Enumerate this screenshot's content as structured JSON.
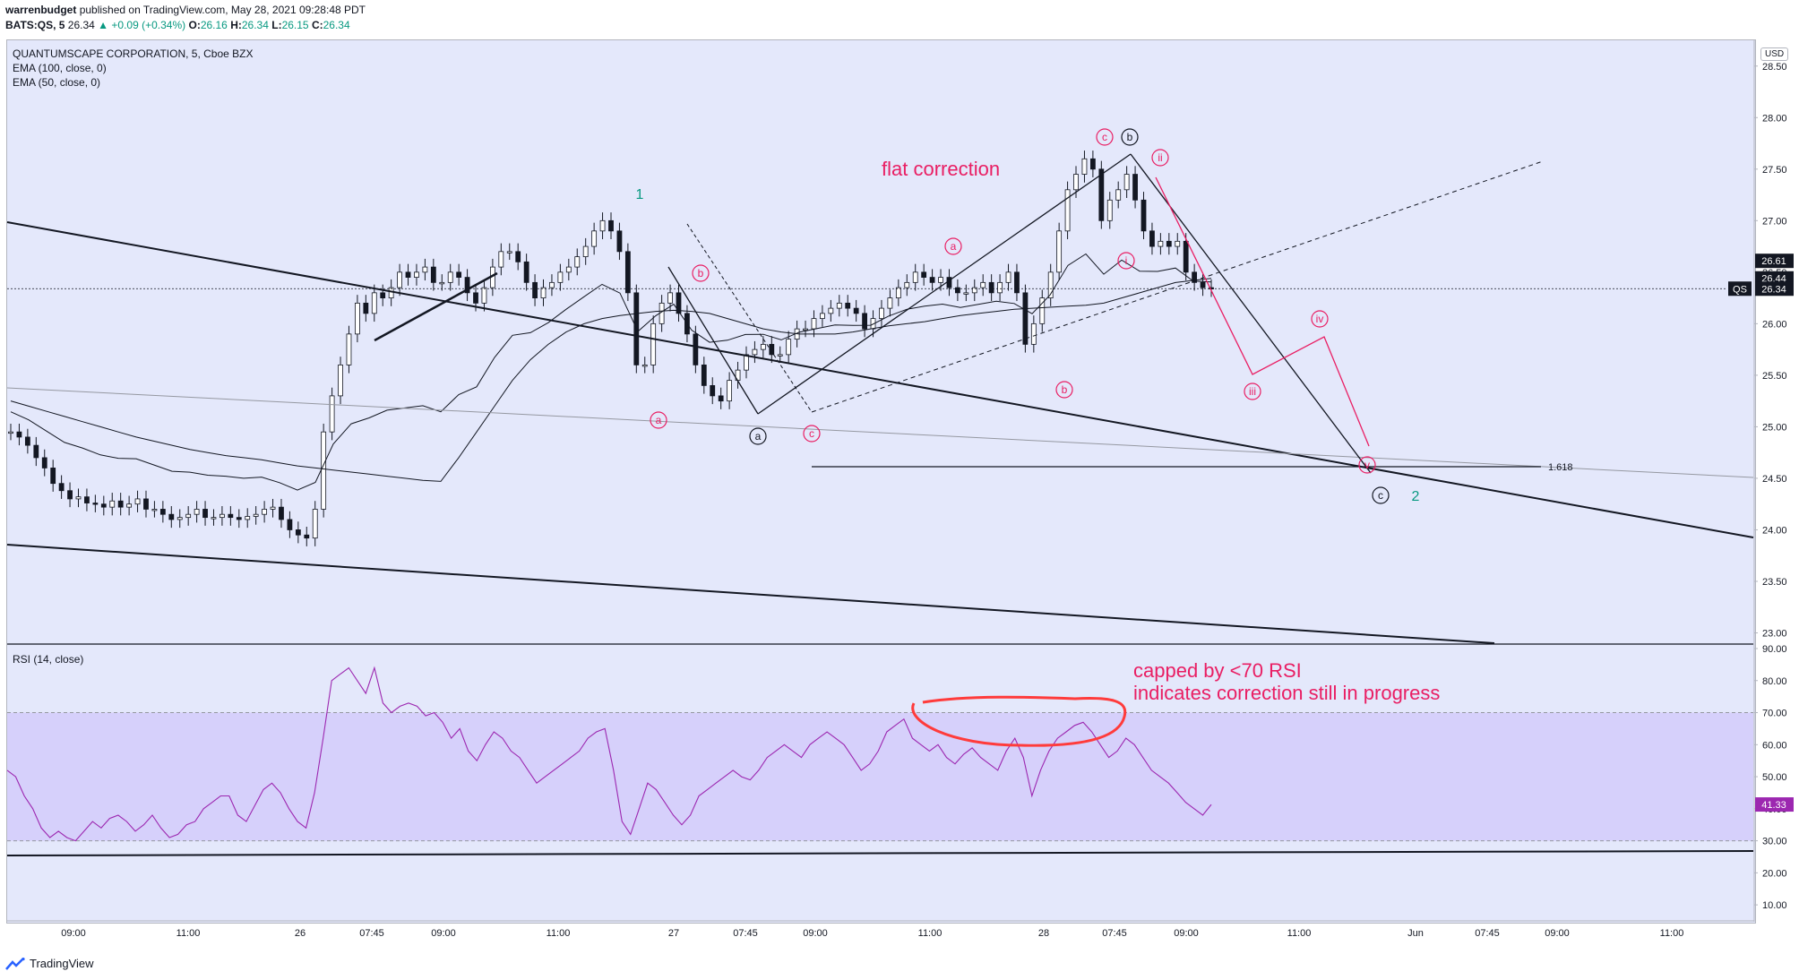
{
  "header": {
    "publisher": "warrenbudget",
    "published_text": "published on TradingView.com, May 28, 2021 09:28:48 PDT",
    "symbol_line_label": "BATS:QS, 5",
    "last": "26.34",
    "change": "+0.09 (+0.34%)",
    "o_label": "O:",
    "o": "26.16",
    "h_label": "H:",
    "h": "26.34",
    "l_label": "L:",
    "l": "26.15",
    "c_label": "C:",
    "c": "26.34"
  },
  "legend": {
    "title": "QUANTUMSCAPE CORPORATION, 5, Cboe BZX",
    "ema100": "EMA (100, close, 0)",
    "ema50": "EMA (50, close, 0)",
    "rsi": "RSI (14, close)"
  },
  "currency": "USD",
  "footer": {
    "brand": "TradingView"
  },
  "colors": {
    "bg": "#e4e8fb",
    "rsi_band": "#d6d0fb",
    "rsi_line": "#9c27b0",
    "wave_pink": "#e91e63",
    "wave_green": "#089981",
    "annot_red": "#ff3b3b"
  },
  "chart_data": [
    {
      "type": "candlestick",
      "title": "QUANTUMSCAPE CORPORATION, 5, Cboe BZX",
      "ylim": [
        22.9,
        28.75
      ],
      "price_ticks": [
        "28.50",
        "28.00",
        "27.50",
        "27.00",
        "26.50",
        "26.00",
        "25.50",
        "25.00",
        "24.50",
        "24.00",
        "23.50",
        "23.00"
      ],
      "time_ticks": [
        "09:00",
        "11:00",
        "26",
        "07:45",
        "09:00",
        "11:00",
        "27",
        "07:45",
        "09:00",
        "11:00",
        "28",
        "07:45",
        "09:00",
        "11:00",
        "Jun",
        "07:45",
        "09:00",
        "11:00"
      ],
      "price_labels": {
        "high": "26.61",
        "mid": "26.44",
        "last": "26.34",
        "symbol": "QS"
      },
      "close_path": [
        24.95,
        24.9,
        24.82,
        24.7,
        24.6,
        24.45,
        24.38,
        24.3,
        24.32,
        24.26,
        24.25,
        24.22,
        24.28,
        24.22,
        24.25,
        24.3,
        24.2,
        24.2,
        24.15,
        24.1,
        24.12,
        24.15,
        24.2,
        24.12,
        24.12,
        24.15,
        24.12,
        24.1,
        24.13,
        24.15,
        24.2,
        24.22,
        24.1,
        24.0,
        23.95,
        23.92,
        24.2,
        24.95,
        25.3,
        25.6,
        25.9,
        26.2,
        26.1,
        26.3,
        26.25,
        26.35,
        26.5,
        26.45,
        26.5,
        26.55,
        26.4,
        26.4,
        26.5,
        26.45,
        26.3,
        26.2,
        26.35,
        26.55,
        26.7,
        26.7,
        26.6,
        26.4,
        26.25,
        26.35,
        26.4,
        26.5,
        26.55,
        26.65,
        26.75,
        26.9,
        27.0,
        26.9,
        26.7,
        26.3,
        25.6,
        25.6,
        26.0,
        26.2,
        26.3,
        26.1,
        25.9,
        25.6,
        25.4,
        25.3,
        25.25,
        25.45,
        25.55,
        25.7,
        25.75,
        25.8,
        25.7,
        25.7,
        25.85,
        25.95,
        25.95,
        26.05,
        26.1,
        26.15,
        26.2,
        26.15,
        26.1,
        25.95,
        26.05,
        26.15,
        26.25,
        26.35,
        26.4,
        26.5,
        26.45,
        26.4,
        26.45,
        26.35,
        26.3,
        26.3,
        26.35,
        26.4,
        26.3,
        26.4,
        26.5,
        26.3,
        25.8,
        26.0,
        26.25,
        26.5,
        26.9,
        27.3,
        27.45,
        27.6,
        27.5,
        27.0,
        27.2,
        27.3,
        27.45,
        27.2,
        26.9,
        26.75,
        26.8,
        26.75,
        26.8,
        26.5,
        26.4,
        26.35,
        26.34
      ],
      "ema100_path": [
        25.25,
        25.2,
        25.15,
        25.1,
        25.05,
        25.0,
        24.95,
        24.9,
        24.86,
        24.82,
        24.78,
        24.75,
        24.72,
        24.7,
        24.68,
        24.65,
        24.62,
        24.6,
        24.58,
        24.56,
        24.54,
        24.52,
        24.5,
        24.48,
        24.47,
        24.7,
        24.95,
        25.2,
        25.45,
        25.65,
        25.8,
        25.92,
        26.0,
        26.05,
        26.08,
        26.1,
        26.12,
        26.13,
        26.12,
        26.1,
        26.05,
        26.0,
        25.95,
        25.92,
        25.9,
        25.9,
        25.9,
        25.92,
        25.95,
        25.98,
        26.0,
        26.02,
        26.05,
        26.08,
        26.1,
        26.12,
        26.14,
        26.15,
        26.16,
        26.17,
        26.18,
        26.2,
        26.25,
        26.3,
        26.35,
        26.4,
        26.42,
        26.44
      ]
    },
    {
      "type": "line",
      "title": "RSI (14, close)",
      "ylim": [
        5,
        90
      ],
      "ticks": [
        "90.00",
        "80.00",
        "70.00",
        "60.00",
        "50.00",
        "40.00",
        "30.00",
        "20.00",
        "10.00"
      ],
      "band": [
        30,
        70
      ],
      "last_value": "41.33",
      "values": [
        52,
        50,
        44,
        40,
        34,
        31,
        33,
        31,
        30,
        33,
        36,
        34,
        37,
        38,
        36,
        33,
        35,
        38,
        34,
        31,
        32,
        35,
        36,
        40,
        42,
        44,
        44,
        38,
        36,
        41,
        46,
        48,
        45,
        40,
        36,
        34,
        45,
        62,
        80,
        82,
        84,
        80,
        76,
        84,
        73,
        70,
        72,
        73,
        72,
        69,
        70,
        67,
        62,
        65,
        58,
        55,
        60,
        64,
        62,
        58,
        56,
        52,
        48,
        50,
        52,
        54,
        56,
        58,
        62,
        64,
        65,
        52,
        36,
        32,
        40,
        48,
        46,
        42,
        38,
        35,
        38,
        44,
        46,
        48,
        50,
        52,
        50,
        49,
        52,
        56,
        58,
        60,
        58,
        56,
        60,
        62,
        64,
        62,
        60,
        56,
        52,
        54,
        58,
        64,
        66,
        68,
        62,
        60,
        58,
        60,
        56,
        54,
        57,
        59,
        56,
        54,
        52,
        58,
        62,
        56,
        44,
        52,
        58,
        62,
        64,
        66,
        67,
        64,
        60,
        56,
        58,
        62,
        60,
        56,
        52,
        50,
        48,
        45,
        42,
        40,
        38,
        41.33
      ]
    }
  ],
  "annotations": {
    "flat_correction": "flat correction",
    "rsi_note_1": "capped by <70 RSI",
    "rsi_note_2": "indicates correction still in progress",
    "fib": "1.618",
    "wave_1": "1",
    "wave_2": "2",
    "a": "a",
    "b": "b",
    "c": "c",
    "i": "i",
    "ii": "ii",
    "iii": "iii",
    "iv": "iv",
    "v": "v"
  }
}
